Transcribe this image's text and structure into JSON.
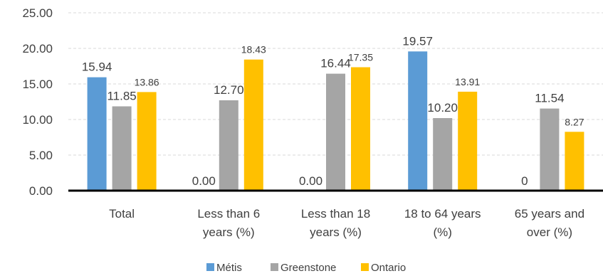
{
  "chart_data": {
    "type": "bar",
    "title": "",
    "xlabel": "",
    "ylabel": "",
    "ylim": [
      0,
      25
    ],
    "y_ticks": [
      "0.00",
      "5.00",
      "10.00",
      "15.00",
      "20.00",
      "25.00"
    ],
    "grid": true,
    "legend_position": "bottom",
    "categories": [
      [
        "Total"
      ],
      [
        "Less than 6",
        "years (%)"
      ],
      [
        "Less than 18",
        "years (%)"
      ],
      [
        "18 to 64 years",
        "(%)"
      ],
      [
        "65 years and",
        "over (%)"
      ]
    ],
    "series": [
      {
        "name": "Métis",
        "color": "#5b9bd5",
        "values": [
          15.94,
          0.0,
          0.0,
          19.57,
          0
        ],
        "labels": [
          "15.94",
          "0.00",
          "0.00",
          "19.57",
          "0"
        ]
      },
      {
        "name": "Greenstone",
        "color": "#a5a5a5",
        "values": [
          11.85,
          12.7,
          16.44,
          10.2,
          11.54
        ],
        "labels": [
          "11.85",
          "12.70",
          "16.44",
          "10.20",
          "11.54"
        ]
      },
      {
        "name": "Ontario",
        "color": "#ffc000",
        "values": [
          13.86,
          18.43,
          17.35,
          13.91,
          8.27
        ],
        "labels": [
          "13.86",
          "18.43",
          "17.35",
          "13.91",
          "8.27"
        ]
      }
    ]
  }
}
